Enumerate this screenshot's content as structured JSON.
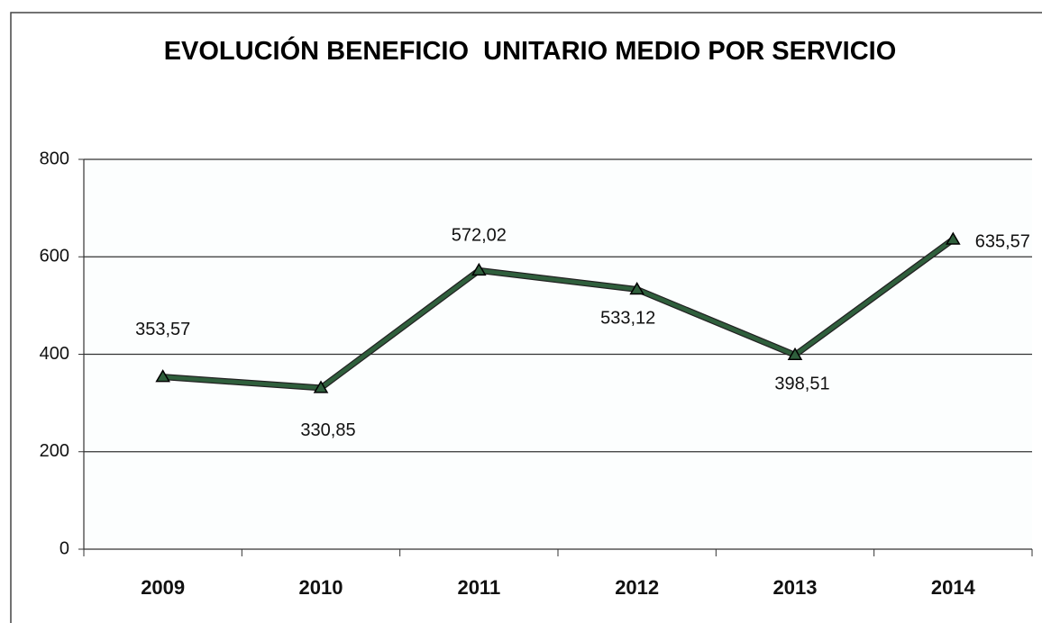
{
  "chart_data": {
    "type": "line",
    "title": "EVOLUCIÓN BENEFICIO  UNITARIO MEDIO POR SERVICIO",
    "categories": [
      "2009",
      "2010",
      "2011",
      "2012",
      "2013",
      "2014"
    ],
    "series": [
      {
        "color": "#2f5f3c",
        "values": [
          353.57,
          330.85,
          572.02,
          533.12,
          398.51,
          635.57
        ],
        "value_labels": [
          "353,57",
          "330,85",
          "572,02",
          "533,12",
          "398,51",
          "635,57"
        ]
      }
    ],
    "ylim": [
      0,
      800
    ],
    "yticks": [
      0,
      200,
      400,
      600,
      800
    ],
    "grid": true
  }
}
